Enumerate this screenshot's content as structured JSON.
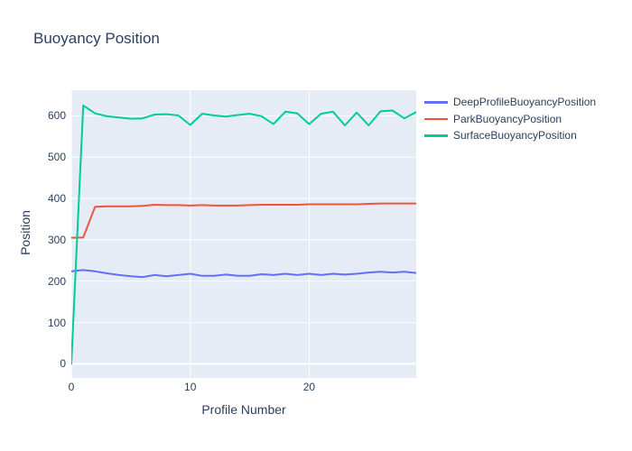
{
  "text_color": "#2a3f5f",
  "chart_data": {
    "type": "line",
    "title": "Buoyancy Position",
    "xlabel": "Profile Number",
    "ylabel": "Position",
    "plot_bg": "#e5ecf6",
    "grid_color": "#ffffff",
    "legend_position": "right",
    "grid": true,
    "xlim": [
      0,
      29
    ],
    "ylim": [
      -34,
      662
    ],
    "xticks": [
      0,
      10,
      20
    ],
    "yticks": [
      0,
      100,
      200,
      300,
      400,
      500,
      600
    ],
    "x": [
      0,
      1,
      2,
      3,
      4,
      5,
      6,
      7,
      8,
      9,
      10,
      11,
      12,
      13,
      14,
      15,
      16,
      17,
      18,
      19,
      20,
      21,
      22,
      23,
      24,
      25,
      26,
      27,
      28,
      29
    ],
    "series": [
      {
        "name": "DeepProfileBuoyancyPosition",
        "color": "#636efa",
        "values": [
          224,
          227,
          224,
          219,
          215,
          212,
          210,
          215,
          212,
          215,
          218,
          213,
          213,
          216,
          213,
          213,
          217,
          215,
          218,
          215,
          218,
          215,
          218,
          216,
          218,
          221,
          223,
          221,
          223,
          220
        ]
      },
      {
        "name": "ParkBuoyancyPosition",
        "color": "#ef553b",
        "values": [
          305,
          306,
          380,
          381,
          381,
          381,
          382,
          385,
          384,
          384,
          383,
          384,
          383,
          383,
          383,
          384,
          385,
          385,
          385,
          385,
          386,
          386,
          386,
          386,
          386,
          387,
          388,
          388,
          388,
          388
        ]
      },
      {
        "name": "SurfaceBuoyancyPosition",
        "color": "#00cc96",
        "values": [
          0,
          625,
          606,
          599,
          596,
          593,
          594,
          603,
          604,
          601,
          578,
          605,
          601,
          598,
          602,
          605,
          599,
          580,
          610,
          606,
          580,
          605,
          610,
          577,
          608,
          577,
          611,
          613,
          594,
          609
        ]
      }
    ]
  }
}
